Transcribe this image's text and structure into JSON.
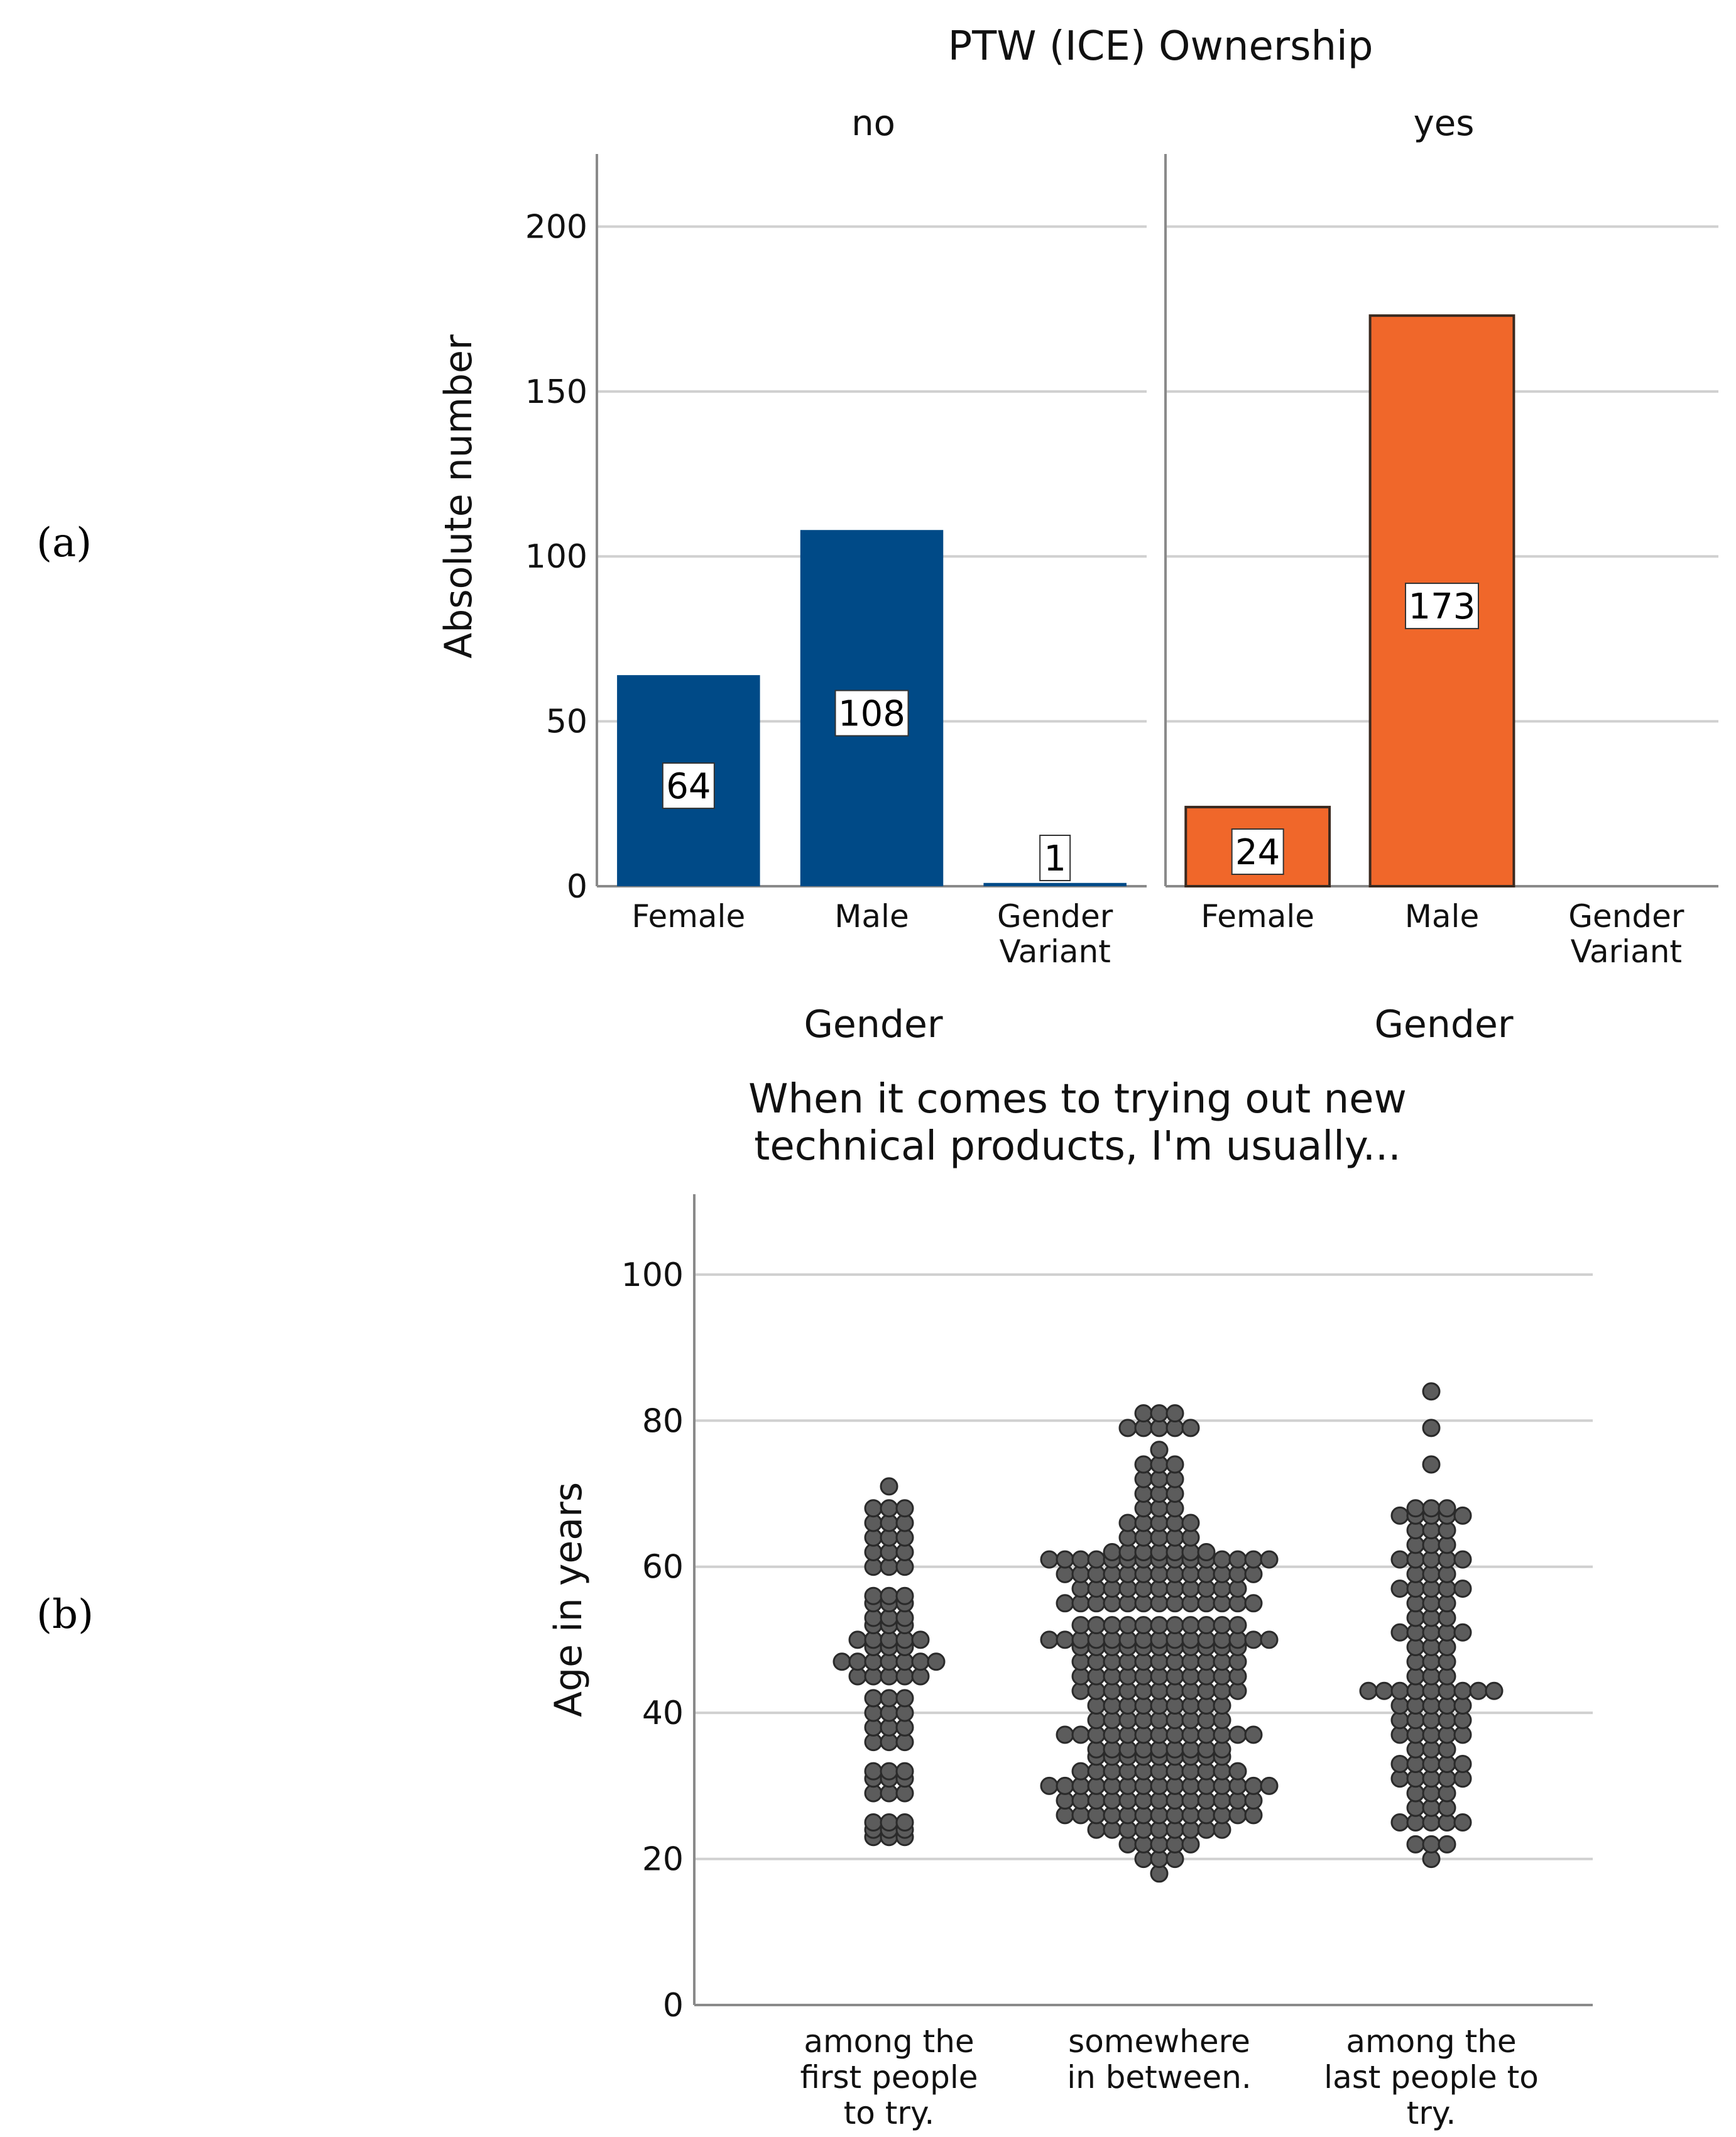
{
  "panels": {
    "a_label": "(a)",
    "b_label": "(b)"
  },
  "chart_data": [
    {
      "id": "a",
      "type": "bar",
      "title": "PTW (ICE) Ownership",
      "facets": [
        "no",
        "yes"
      ],
      "categories": [
        [
          "Female"
        ],
        [
          "Male"
        ],
        [
          "Gender",
          "Variant"
        ]
      ],
      "series": [
        {
          "name": "no",
          "values": [
            64,
            108,
            1
          ],
          "color": "#004a87"
        },
        {
          "name": "yes",
          "values": [
            24,
            173,
            null
          ],
          "color": "#f0672a"
        }
      ],
      "data_labels": {
        "no": [
          "64",
          "108",
          "1"
        ],
        "yes": [
          "24",
          "173",
          ""
        ]
      },
      "ylabel": "Absolute number",
      "xlabel": "Gender",
      "ylim": [
        0,
        222
      ],
      "yticks": [
        0,
        50,
        100,
        150,
        200
      ],
      "grid": true
    },
    {
      "id": "b",
      "type": "scatter",
      "subtype": "dot-plot",
      "title": [
        "When it comes to trying out new",
        "technical products, I'm usually..."
      ],
      "categories": [
        [
          "among the",
          "first people",
          "to try."
        ],
        [
          "somewhere",
          "in between."
        ],
        [
          "among the",
          "last people to",
          "try."
        ]
      ],
      "ylabel": "Age in years",
      "ylim": [
        0,
        111
      ],
      "yticks": [
        0,
        20,
        40,
        60,
        80,
        100
      ],
      "grid": true,
      "marker_color": "#5c5c5c",
      "series": [
        {
          "name": "among the first people to try.",
          "age_counts": [
            [
              23,
              3
            ],
            [
              24,
              3
            ],
            [
              25,
              3
            ],
            [
              29,
              3
            ],
            [
              31,
              3
            ],
            [
              32,
              3
            ],
            [
              36,
              3
            ],
            [
              38,
              3
            ],
            [
              40,
              3
            ],
            [
              42,
              3
            ],
            [
              45,
              5
            ],
            [
              47,
              7
            ],
            [
              49,
              3
            ],
            [
              50,
              5
            ],
            [
              52,
              3
            ],
            [
              53,
              3
            ],
            [
              55,
              3
            ],
            [
              56,
              3
            ],
            [
              60,
              3
            ],
            [
              62,
              3
            ],
            [
              64,
              3
            ],
            [
              66,
              3
            ],
            [
              68,
              3
            ],
            [
              71,
              1
            ]
          ]
        },
        {
          "name": "somewhere in between.",
          "age_counts": [
            [
              18,
              1
            ],
            [
              20,
              3
            ],
            [
              22,
              5
            ],
            [
              24,
              9
            ],
            [
              26,
              13
            ],
            [
              28,
              13
            ],
            [
              30,
              15
            ],
            [
              32,
              11
            ],
            [
              34,
              9
            ],
            [
              35,
              9
            ],
            [
              37,
              13
            ],
            [
              39,
              9
            ],
            [
              41,
              9
            ],
            [
              43,
              11
            ],
            [
              45,
              11
            ],
            [
              47,
              11
            ],
            [
              49,
              11
            ],
            [
              50,
              15
            ],
            [
              52,
              11
            ],
            [
              55,
              13
            ],
            [
              57,
              11
            ],
            [
              59,
              13
            ],
            [
              61,
              15
            ],
            [
              62,
              7
            ],
            [
              64,
              5
            ],
            [
              66,
              5
            ],
            [
              68,
              3
            ],
            [
              70,
              3
            ],
            [
              72,
              3
            ],
            [
              74,
              3
            ],
            [
              76,
              1
            ],
            [
              79,
              5
            ],
            [
              81,
              3
            ]
          ]
        },
        {
          "name": "among the last people to try.",
          "age_counts": [
            [
              20,
              1
            ],
            [
              22,
              3
            ],
            [
              25,
              5
            ],
            [
              27,
              3
            ],
            [
              29,
              3
            ],
            [
              31,
              5
            ],
            [
              33,
              5
            ],
            [
              35,
              3
            ],
            [
              37,
              5
            ],
            [
              39,
              5
            ],
            [
              41,
              5
            ],
            [
              43,
              9
            ],
            [
              45,
              3
            ],
            [
              47,
              3
            ],
            [
              49,
              3
            ],
            [
              51,
              5
            ],
            [
              53,
              3
            ],
            [
              55,
              3
            ],
            [
              57,
              5
            ],
            [
              59,
              3
            ],
            [
              61,
              5
            ],
            [
              63,
              3
            ],
            [
              65,
              3
            ],
            [
              67,
              5
            ],
            [
              68,
              3
            ],
            [
              74,
              1
            ],
            [
              79,
              1
            ],
            [
              84,
              1
            ]
          ]
        }
      ]
    }
  ]
}
